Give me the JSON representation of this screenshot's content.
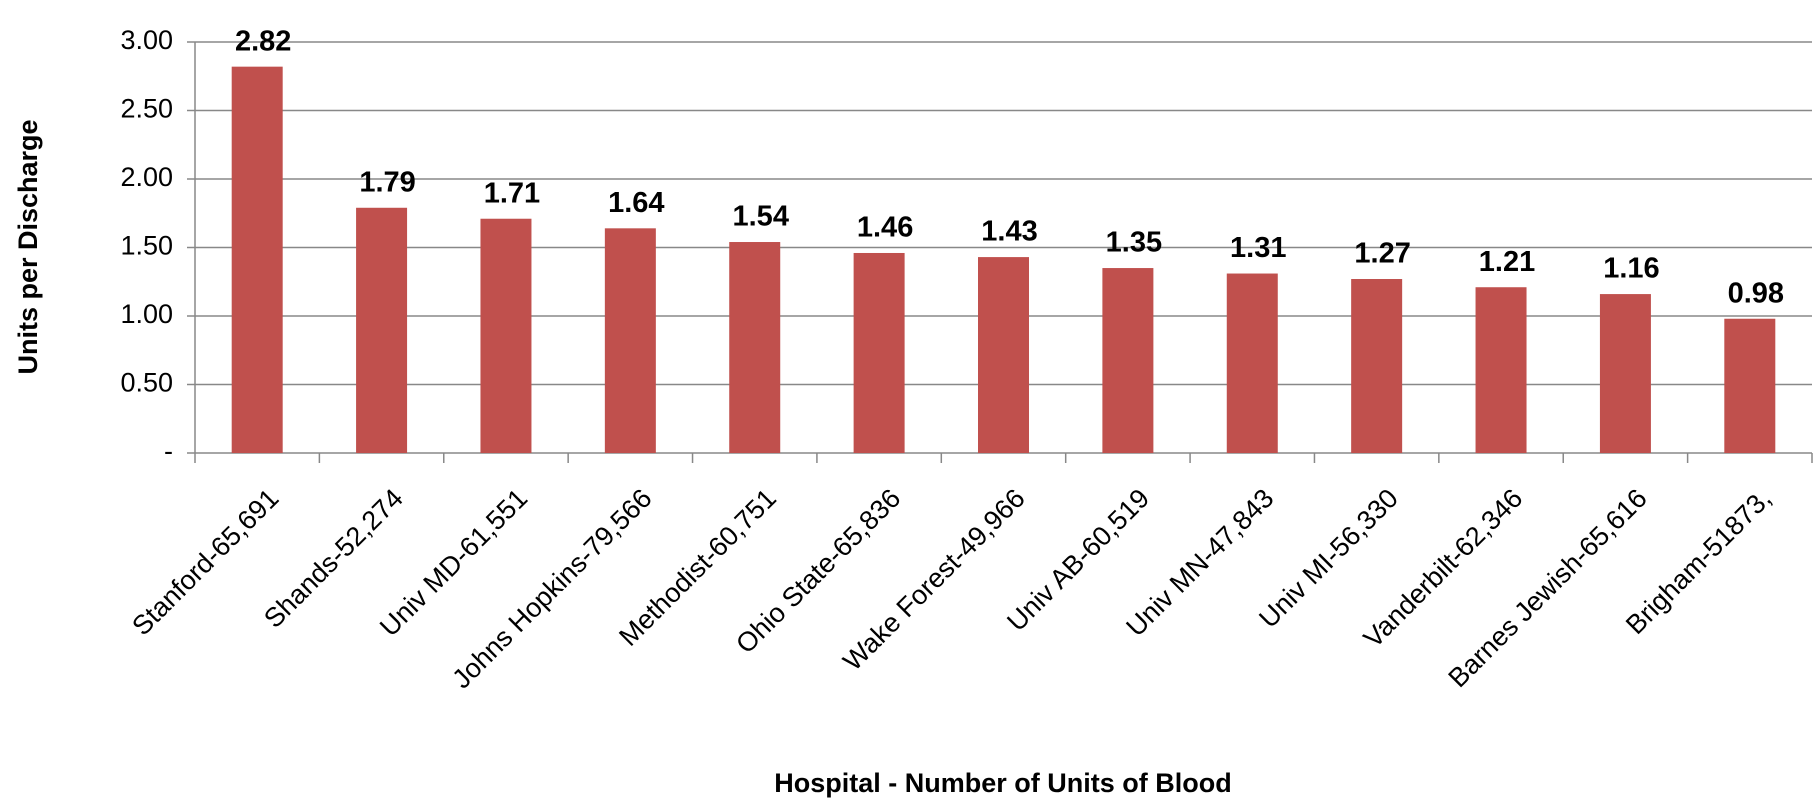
{
  "chart_data": {
    "type": "bar",
    "categories": [
      "Stanford-65,691",
      "Shands-52,274",
      "Univ MD-61,551",
      "Johns Hopkins-79,566",
      "Methodist-60,751",
      "Ohio State-65,836",
      "Wake Forest-49,966",
      "Univ AB-60,519",
      "Univ MN-47,843",
      "Univ MI-56,330",
      "Vanderbilt-62,346",
      "Barnes Jewish-65,616",
      "Brigham-51873,"
    ],
    "values": [
      2.82,
      1.79,
      1.71,
      1.64,
      1.54,
      1.46,
      1.43,
      1.35,
      1.31,
      1.27,
      1.21,
      1.16,
      0.98
    ],
    "color": "#c0504d",
    "x_label": "Hospital - Number of Units of Blood",
    "y_label": "Units per Discharge",
    "ylim": [
      0,
      3
    ],
    "yticks": [
      {
        "value": 0,
        "label": "-"
      },
      {
        "value": 0.5,
        "label": "0.50"
      },
      {
        "value": 1,
        "label": "1.00"
      },
      {
        "value": 1.5,
        "label": "1.50"
      },
      {
        "value": 2,
        "label": "2.00"
      },
      {
        "value": 2.5,
        "label": "2.50"
      },
      {
        "value": 3,
        "label": "3.00"
      }
    ],
    "grid": true
  }
}
